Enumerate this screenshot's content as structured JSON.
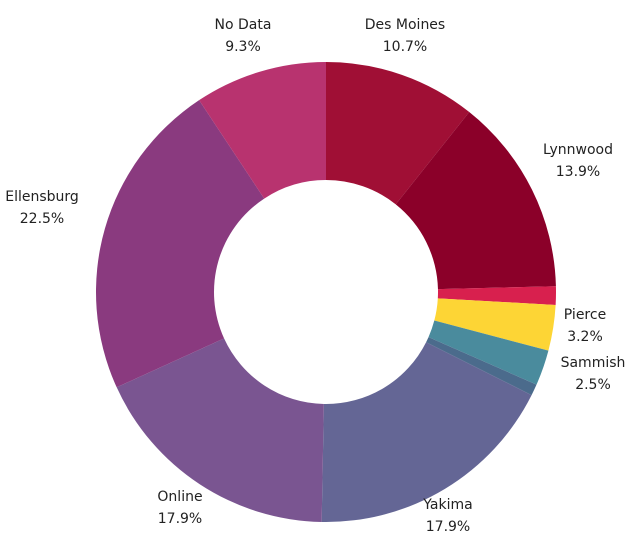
{
  "chart_data": {
    "type": "donut",
    "categories": [
      "Des Moines",
      "Lynnwood",
      null,
      "Pierce",
      "Sammish",
      null,
      "Yakima",
      "Online",
      "Ellensburg",
      "No Data"
    ],
    "values": [
      10.7,
      13.9,
      1.3,
      3.2,
      2.5,
      0.8,
      17.9,
      17.9,
      22.5,
      9.3
    ],
    "value_labels": [
      "10.7%",
      "13.9%",
      null,
      "3.2%",
      "2.5%",
      null,
      "17.9%",
      "17.9%",
      "22.5%",
      "9.3%"
    ],
    "colors": [
      "#a00f35",
      "#8b0029",
      "#d8204e",
      "#fdd535",
      "#4a8b9d",
      "#4b6b8c",
      "#646695",
      "#7a5591",
      "#8a3a7f",
      "#b8336f"
    ]
  }
}
